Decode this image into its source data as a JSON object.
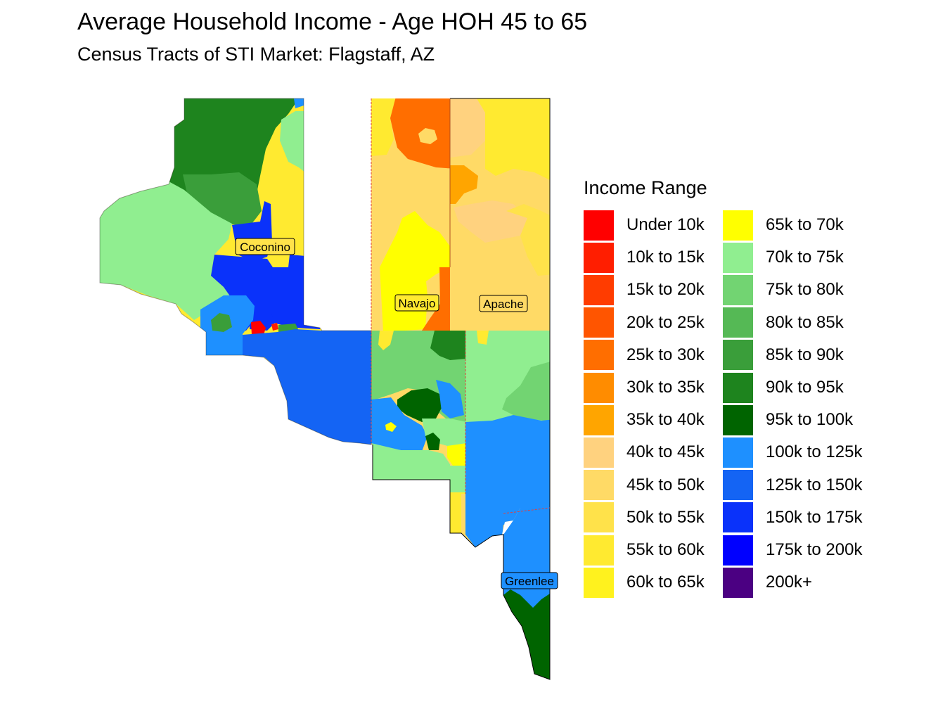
{
  "title": "Average Household Income - Age HOH 45 to 65",
  "subtitle": "Census Tracts of STI Market: Flagstaff, AZ",
  "legend": {
    "title": "Income Range",
    "items": [
      {
        "label": "Under 10k",
        "color": "#FF0000"
      },
      {
        "label": "10k to 15k",
        "color": "#FF1E00"
      },
      {
        "label": "15k to 20k",
        "color": "#FF3C00"
      },
      {
        "label": "20k to 25k",
        "color": "#FF5500"
      },
      {
        "label": "25k to 30k",
        "color": "#FF6E00"
      },
      {
        "label": "30k to 35k",
        "color": "#FF8C00"
      },
      {
        "label": "35k to 40k",
        "color": "#FFA500"
      },
      {
        "label": "40k to 45k",
        "color": "#FFD27F"
      },
      {
        "label": "45k to 50k",
        "color": "#FFDA66"
      },
      {
        "label": "50k to 55k",
        "color": "#FFE24A"
      },
      {
        "label": "55k to 60k",
        "color": "#FFEA30"
      },
      {
        "label": "60k to 65k",
        "color": "#FFF21E"
      },
      {
        "label": "65k to 70k",
        "color": "#FFFF00"
      },
      {
        "label": "70k to 75k",
        "color": "#90EE90"
      },
      {
        "label": "75k to 80k",
        "color": "#72D472"
      },
      {
        "label": "80k to 85k",
        "color": "#55B955"
      },
      {
        "label": "85k to 90k",
        "color": "#3A9E3A"
      },
      {
        "label": "90k to 95k",
        "color": "#1E841E"
      },
      {
        "label": "95k to 100k",
        "color": "#006400"
      },
      {
        "label": "100k to 125k",
        "color": "#1E90FF"
      },
      {
        "label": "125k to 150k",
        "color": "#1464F4"
      },
      {
        "label": "150k to 175k",
        "color": "#0A32FA"
      },
      {
        "label": "175k to 200k",
        "color": "#0000FF"
      },
      {
        "label": "200k+",
        "color": "#4B0082"
      }
    ]
  },
  "counties": {
    "coconino": "Coconino",
    "navajo": "Navajo",
    "apache": "Apache",
    "greenlee": "Greenlee"
  }
}
